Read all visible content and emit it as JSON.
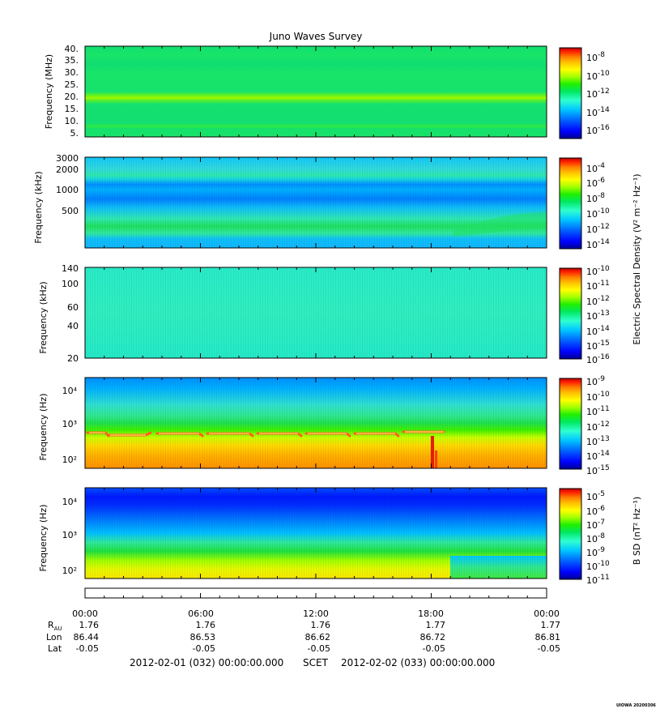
{
  "title": "Juno Waves Survey",
  "footer_tag": "UIOWA 20200306",
  "colors": {
    "colormap": [
      "#00008f",
      "#0000ff",
      "#0060ff",
      "#00c8ff",
      "#30ffd0",
      "#00e860",
      "#20f000",
      "#a0ff00",
      "#ffff00",
      "#ffc000",
      "#ff8000",
      "#ff2000",
      "#c00000"
    ]
  },
  "chart_data": [
    {
      "type": "heatmap",
      "title": "Juno Waves Survey",
      "ylabel": "Frequency (MHz)",
      "yticks": [
        "40.",
        "35.",
        "30.",
        "25.",
        "20.",
        "15.",
        "10.",
        "5."
      ],
      "colorbar_ticks": [
        "-8",
        "-10",
        "-12",
        "-14",
        "-16"
      ],
      "colorbar_prefix": "10",
      "colorbar_range": [
        -17,
        -7
      ],
      "colorbar_label": ""
    },
    {
      "type": "heatmap",
      "ylabel": "Frequency (kHz)",
      "yticks": [
        "3000",
        "2000",
        "1000",
        "500"
      ],
      "colorbar_ticks": [
        "-4",
        "-6",
        "-8",
        "-10",
        "-12",
        "-14"
      ],
      "colorbar_prefix": "10",
      "colorbar_range": [
        -15,
        -3
      ],
      "colorbar_label": "Electric Spectral Density (V² m⁻² Hz⁻¹)"
    },
    {
      "type": "heatmap",
      "ylabel": "Frequency (kHz)",
      "yticks": [
        "140",
        "100",
        "60",
        "40",
        "20"
      ],
      "colorbar_ticks": [
        "-10",
        "-11",
        "-12",
        "-13",
        "-14",
        "-15",
        "-16"
      ],
      "colorbar_prefix": "10",
      "colorbar_range": [
        -16,
        -10
      ],
      "colorbar_label": ""
    },
    {
      "type": "heatmap",
      "ylabel": "Frequency (Hz)",
      "yticks": [
        "10⁴",
        "10³",
        "10²"
      ],
      "colorbar_ticks": [
        "-9",
        "-10",
        "-11",
        "-12",
        "-13",
        "-14",
        "-15"
      ],
      "colorbar_prefix": "10",
      "colorbar_range": [
        -15,
        -9
      ],
      "colorbar_label": ""
    },
    {
      "type": "heatmap",
      "ylabel": "Frequency (Hz)",
      "yticks": [
        "10⁴",
        "10³",
        "10²"
      ],
      "colorbar_ticks": [
        "-5",
        "-6",
        "-7",
        "-8",
        "-9",
        "-10",
        "-11"
      ],
      "colorbar_prefix": "10",
      "colorbar_range": [
        -11,
        -4.5
      ],
      "colorbar_label": "B SD (nT² Hz⁻¹)"
    }
  ],
  "x_axis": {
    "times": [
      "00:00",
      "06:00",
      "12:00",
      "18:00",
      "00:00"
    ],
    "rows": [
      {
        "label": "R_AU",
        "values": [
          "1.76",
          "1.76",
          "1.76",
          "1.77",
          "1.77"
        ]
      },
      {
        "label": "Lon",
        "values": [
          "86.44",
          "86.53",
          "86.62",
          "86.72",
          "86.81"
        ]
      },
      {
        "label": "Lat",
        "values": [
          "-0.05",
          "-0.05",
          "-0.05",
          "-0.05",
          "-0.05"
        ]
      }
    ],
    "date_start": "2012-02-01 (032) 00:00:00.000",
    "frame": "SCET",
    "date_end": "2012-02-02 (033) 00:00:00.000"
  }
}
